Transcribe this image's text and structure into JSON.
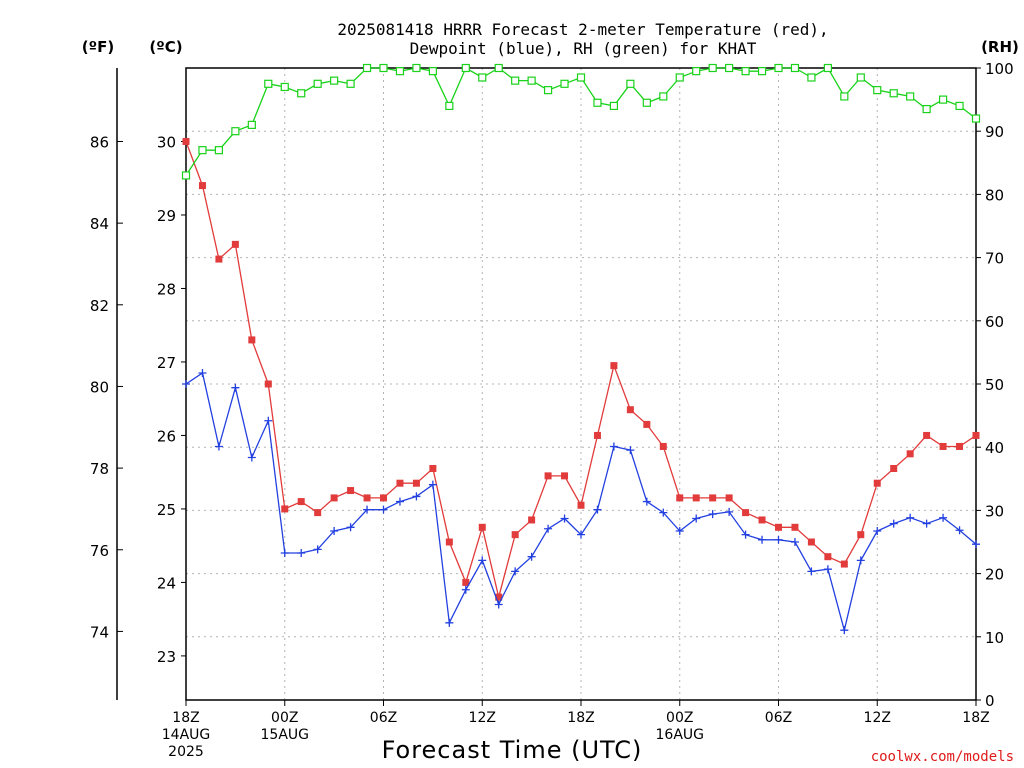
{
  "title_line1": "2025081418 HRRR Forecast 2-meter Temperature (red),",
  "title_line2": "Dewpoint (blue), RH (green) for KHAT",
  "unit_f": "(ºF)",
  "unit_c": "(ºC)",
  "unit_rh": "(RH)",
  "credit": "coolwx.com/models",
  "colors": {
    "temp": "#e23b3b",
    "dewpoint": "#2340e0",
    "rh": "#19d219",
    "grid": "#b4b4b4"
  },
  "chart_data": {
    "type": "line",
    "title": "2025081418 HRRR Forecast 2-meter Temperature (red), Dewpoint (blue), RH (green) for KHAT",
    "xlabel": "Forecast Time (UTC)",
    "x_ticks": [
      {
        "hour": 0,
        "lines": [
          "18Z",
          "14AUG",
          "2025"
        ]
      },
      {
        "hour": 6,
        "lines": [
          "00Z",
          "15AUG"
        ]
      },
      {
        "hour": 12,
        "lines": [
          "06Z"
        ]
      },
      {
        "hour": 18,
        "lines": [
          "12Z"
        ]
      },
      {
        "hour": 24,
        "lines": [
          "18Z"
        ]
      },
      {
        "hour": 30,
        "lines": [
          "00Z",
          "16AUG"
        ]
      },
      {
        "hour": 36,
        "lines": [
          "06Z"
        ]
      },
      {
        "hour": 42,
        "lines": [
          "12Z"
        ]
      },
      {
        "hour": 48,
        "lines": [
          "18Z"
        ]
      }
    ],
    "x_range_hours": [
      0,
      48
    ],
    "celsius_axis": {
      "label": "(ºC)",
      "range": [
        22.4,
        31.0
      ],
      "ticks": [
        23,
        24,
        25,
        26,
        27,
        28,
        29,
        30
      ]
    },
    "fahrenheit_axis": {
      "label": "(ºF)",
      "ticks": [
        74,
        76,
        78,
        80,
        82,
        84,
        86
      ]
    },
    "rh_axis": {
      "label": "(RH)",
      "range": [
        0,
        100
      ],
      "ticks": [
        0,
        10,
        20,
        30,
        40,
        50,
        60,
        70,
        80,
        90,
        100
      ]
    },
    "grid": true,
    "series": [
      {
        "name": "Temperature",
        "color": "#e23b3b",
        "axis": "celsius",
        "marker": "filled-square",
        "values": [
          30.0,
          29.4,
          28.4,
          28.6,
          27.3,
          26.7,
          25.0,
          25.1,
          24.95,
          25.15,
          25.25,
          25.15,
          25.15,
          25.35,
          25.35,
          25.55,
          24.55,
          24.0,
          24.75,
          23.8,
          24.65,
          24.85,
          25.45,
          25.45,
          25.05,
          26.0,
          26.95,
          26.35,
          26.15,
          25.85,
          25.15,
          25.15,
          25.15,
          25.15,
          24.95,
          24.85,
          24.75,
          24.75,
          24.55,
          24.35,
          24.25,
          24.65,
          25.35,
          25.55,
          25.75,
          26.0,
          25.85,
          25.85,
          26.0
        ]
      },
      {
        "name": "Dewpoint",
        "color": "#2340e0",
        "axis": "celsius",
        "marker": "plus",
        "values": [
          26.7,
          26.85,
          25.85,
          26.65,
          25.7,
          26.2,
          24.4,
          24.4,
          24.45,
          24.7,
          24.75,
          24.99,
          24.99,
          25.1,
          25.17,
          25.33,
          23.45,
          23.9,
          24.3,
          23.7,
          24.15,
          24.35,
          24.73,
          24.87,
          24.65,
          24.99,
          25.85,
          25.8,
          25.1,
          24.95,
          24.7,
          24.87,
          24.93,
          24.96,
          24.65,
          24.58,
          24.58,
          24.55,
          24.15,
          24.18,
          23.35,
          24.3,
          24.7,
          24.8,
          24.88,
          24.8,
          24.88,
          24.71,
          24.52
        ]
      },
      {
        "name": "RH",
        "color": "#19d219",
        "axis": "rh",
        "marker": "open-square",
        "values": [
          83,
          87,
          87,
          90,
          91,
          97.5,
          97,
          96,
          97.5,
          98,
          97.5,
          100,
          100,
          99.5,
          100,
          99.5,
          94,
          100,
          98.5,
          100,
          98,
          98,
          96.5,
          97.5,
          98.5,
          94.5,
          94,
          97.5,
          94.5,
          95.5,
          98.5,
          99.5,
          100,
          100,
          99.5,
          99.5,
          100,
          100,
          98.5,
          100,
          95.5,
          98.5,
          96.5,
          96,
          95.5,
          93.5,
          95,
          94,
          92
        ]
      }
    ]
  }
}
